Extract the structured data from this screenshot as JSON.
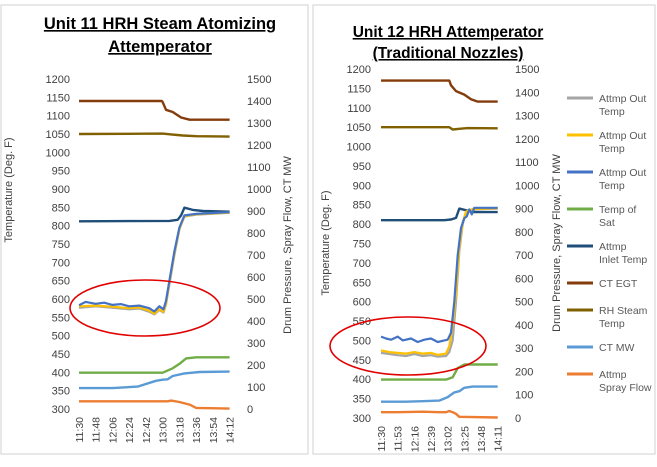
{
  "charts": [
    {
      "title_line1": "Unit 11 HRH Steam Atomizing",
      "title_line2": "Attemperator"
    },
    {
      "title_line1": "Unit 12 HRH Attemperator",
      "title_line2": "(Traditional Nozzles)"
    }
  ],
  "legend": [
    {
      "label_lines": [
        "Attmp Out",
        "Temp"
      ],
      "color": "#a5a5a5"
    },
    {
      "label_lines": [
        "Attmp Out",
        "Temp"
      ],
      "color": "#ffc000"
    },
    {
      "label_lines": [
        "Attmp Out",
        "Temp"
      ],
      "color": "#4472c4"
    },
    {
      "label_lines": [
        "Temp of",
        "Sat"
      ],
      "color": "#70ad47"
    },
    {
      "label_lines": [
        "Attmp",
        "Inlet Temp"
      ],
      "color": "#1f4e79"
    },
    {
      "label_lines": [
        "CT EGT"
      ],
      "color": "#843c0c"
    },
    {
      "label_lines": [
        "RH Steam",
        "Temp"
      ],
      "color": "#806000"
    },
    {
      "label_lines": [
        "CT MW"
      ],
      "color": "#5b9bd5"
    },
    {
      "label_lines": [
        "Attmp",
        "Spray Flow"
      ],
      "color": "#ed7d31"
    }
  ],
  "chart_data": [
    {
      "type": "line",
      "title": "Unit 11 HRH Steam Atomizing Attemperator",
      "ylabel": "Temperature (Deg. F)",
      "y2label": "Drum Pressure, Spray Flow, CT MW",
      "ylim": [
        300,
        1200
      ],
      "y2lim": [
        0,
        1500
      ],
      "yticks": [
        "300",
        "350",
        "400",
        "450",
        "500",
        "550",
        "600",
        "650",
        "700",
        "750",
        "800",
        "850",
        "900",
        "950",
        "1000",
        "1050",
        "1100",
        "1150",
        "1200"
      ],
      "y2ticks": [
        "0",
        "100",
        "200",
        "300",
        "400",
        "500",
        "600",
        "700",
        "800",
        "900",
        "1000",
        "1100",
        "1200",
        "1300",
        "1400",
        "1500"
      ],
      "categories": [
        "11:30",
        "11:48",
        "12:06",
        "12:24",
        "12:42",
        "13:00",
        "13:18",
        "13:36",
        "13:54",
        "14:12"
      ],
      "grid": false,
      "highlight": "red ellipse around Attmp Out Temp traces before 13:05",
      "series": [
        {
          "name": "CT EGT",
          "axis": "y2",
          "color": "#843c0c",
          "points": [
            [
              0,
              1400
            ],
            [
              4.95,
              1400
            ],
            [
              5.0,
              1395
            ],
            [
              5.2,
              1360
            ],
            [
              5.6,
              1350
            ],
            [
              6.1,
              1325
            ],
            [
              6.6,
              1315
            ],
            [
              9.0,
              1315
            ]
          ]
        },
        {
          "name": "RH Steam Temp",
          "axis": "y2",
          "color": "#806000",
          "points": [
            [
              0,
              1250
            ],
            [
              5.0,
              1252
            ],
            [
              5.5,
              1248
            ],
            [
              6.2,
              1243
            ],
            [
              7.0,
              1240
            ],
            [
              9.0,
              1238
            ]
          ]
        },
        {
          "name": "Attmp Inlet Temp",
          "axis": "y2",
          "color": "#1f4e79",
          "points": [
            [
              0,
              853
            ],
            [
              5.4,
              855
            ],
            [
              5.9,
              860
            ],
            [
              6.1,
              880
            ],
            [
              6.3,
              915
            ],
            [
              6.8,
              905
            ],
            [
              7.4,
              900
            ],
            [
              9.0,
              897
            ]
          ]
        },
        {
          "name": "CT MW",
          "axis": "y2",
          "color": "#5b9bd5",
          "points": [
            [
              0,
              95
            ],
            [
              2.0,
              95
            ],
            [
              3.5,
              102
            ],
            [
              4.6,
              128
            ],
            [
              5.0,
              133
            ],
            [
              5.3,
              135
            ],
            [
              5.6,
              150
            ],
            [
              6.3,
              162
            ],
            [
              7.2,
              168
            ],
            [
              9.0,
              170
            ]
          ]
        },
        {
          "name": "Temp of Sat",
          "axis": "y2",
          "color": "#70ad47",
          "points": [
            [
              0,
              165
            ],
            [
              5.0,
              165
            ],
            [
              5.6,
              185
            ],
            [
              6.0,
              205
            ],
            [
              6.4,
              230
            ],
            [
              7.0,
              235
            ],
            [
              9.0,
              235
            ]
          ]
        },
        {
          "name": "Attmp Spray Flow",
          "axis": "y2",
          "color": "#ed7d31",
          "points": [
            [
              0,
              35
            ],
            [
              5.3,
              35
            ],
            [
              5.5,
              38
            ],
            [
              6.0,
              32
            ],
            [
              6.6,
              20
            ],
            [
              7.0,
              5
            ],
            [
              9.0,
              2
            ]
          ]
        },
        {
          "name": "Attmp Out Temp",
          "axis": "y",
          "color": "#a5a5a5",
          "points": [
            [
              0,
              576
            ],
            [
              1.0,
              580
            ],
            [
              2.0,
              576
            ],
            [
              3.0,
              572
            ],
            [
              3.6,
              574
            ],
            [
              4.2,
              565
            ],
            [
              4.5,
              558
            ],
            [
              4.8,
              570
            ],
            [
              5.05,
              563
            ],
            [
              5.2,
              585
            ],
            [
              5.4,
              640
            ],
            [
              5.7,
              720
            ],
            [
              6.0,
              790
            ],
            [
              6.3,
              825
            ],
            [
              7.0,
              830
            ],
            [
              9.0,
              835
            ]
          ]
        },
        {
          "name": "Attmp Out Temp",
          "axis": "y",
          "color": "#ffc000",
          "points": [
            [
              0,
              580
            ],
            [
              1.0,
              582
            ],
            [
              2.0,
              579
            ],
            [
              3.0,
              575
            ],
            [
              3.6,
              577
            ],
            [
              4.2,
              568
            ],
            [
              4.5,
              560
            ],
            [
              4.8,
              572
            ],
            [
              5.05,
              565
            ],
            [
              5.2,
              588
            ],
            [
              5.4,
              645
            ],
            [
              5.7,
              725
            ],
            [
              6.0,
              792
            ],
            [
              6.3,
              826
            ],
            [
              7.0,
              831
            ],
            [
              9.0,
              836
            ]
          ]
        },
        {
          "name": "Attmp Out Temp",
          "axis": "y",
          "color": "#4472c4",
          "points": [
            [
              0,
              583
            ],
            [
              0.4,
              592
            ],
            [
              1.0,
              587
            ],
            [
              1.5,
              590
            ],
            [
              2.0,
              584
            ],
            [
              2.5,
              586
            ],
            [
              3.0,
              580
            ],
            [
              3.6,
              582
            ],
            [
              4.2,
              575
            ],
            [
              4.5,
              566
            ],
            [
              4.8,
              580
            ],
            [
              5.05,
              572
            ],
            [
              5.2,
              595
            ],
            [
              5.4,
              650
            ],
            [
              5.7,
              730
            ],
            [
              6.0,
              795
            ],
            [
              6.3,
              828
            ],
            [
              7.0,
              832
            ],
            [
              9.0,
              837
            ]
          ]
        }
      ]
    },
    {
      "type": "line",
      "title": "Unit 12 HRH Attemperator (Traditional Nozzles)",
      "ylabel": "Temperature (Deg. F)",
      "y2label": "Drum Pressure, Spray Flow, CT MW",
      "ylim": [
        300,
        1200
      ],
      "y2lim": [
        0,
        1500
      ],
      "yticks": [
        "300",
        "350",
        "400",
        "450",
        "500",
        "550",
        "600",
        "650",
        "700",
        "750",
        "800",
        "850",
        "900",
        "950",
        "1000",
        "1050",
        "1100",
        "1150",
        "1200"
      ],
      "y2ticks": [
        "0",
        "100",
        "200",
        "300",
        "400",
        "500",
        "600",
        "700",
        "800",
        "900",
        "1000",
        "1100",
        "1200",
        "1300",
        "1400",
        "1500"
      ],
      "categories": [
        "11:30",
        "11:53",
        "12:16",
        "12:39",
        "13:02",
        "13:25",
        "13:48",
        "14:11"
      ],
      "grid": false,
      "highlight": "red ellipse around Attmp Out Temp traces before 13:10",
      "series": [
        {
          "name": "CT EGT",
          "axis": "y2",
          "color": "#843c0c",
          "points": [
            [
              0,
              1450
            ],
            [
              4.1,
              1450
            ],
            [
              4.2,
              1430
            ],
            [
              4.5,
              1405
            ],
            [
              5.0,
              1390
            ],
            [
              5.4,
              1370
            ],
            [
              5.8,
              1360
            ],
            [
              7.0,
              1360
            ]
          ]
        },
        {
          "name": "RH Steam Temp",
          "axis": "y2",
          "color": "#806000",
          "points": [
            [
              0,
              1250
            ],
            [
              4.1,
              1250
            ],
            [
              4.3,
              1240
            ],
            [
              4.7,
              1243
            ],
            [
              5.2,
              1246
            ],
            [
              7.0,
              1245
            ]
          ]
        },
        {
          "name": "Attmp Inlet Temp",
          "axis": "y2",
          "color": "#1f4e79",
          "points": [
            [
              0,
              850
            ],
            [
              3.8,
              850
            ],
            [
              4.2,
              853
            ],
            [
              4.5,
              860
            ],
            [
              4.7,
              900
            ],
            [
              5.0,
              895
            ],
            [
              5.5,
              885
            ],
            [
              7.0,
              885
            ]
          ]
        },
        {
          "name": "CT MW",
          "axis": "y2",
          "color": "#5b9bd5",
          "points": [
            [
              0,
              70
            ],
            [
              1.5,
              70
            ],
            [
              2.5,
              72
            ],
            [
              3.5,
              75
            ],
            [
              4.0,
              90
            ],
            [
              4.4,
              110
            ],
            [
              4.7,
              115
            ],
            [
              5.0,
              130
            ],
            [
              5.5,
              135
            ],
            [
              7.0,
              135
            ]
          ]
        },
        {
          "name": "Temp of Sat",
          "axis": "y2",
          "color": "#70ad47",
          "points": [
            [
              0,
              165
            ],
            [
              3.9,
              165
            ],
            [
              4.3,
              175
            ],
            [
              4.6,
              215
            ],
            [
              5.0,
              230
            ],
            [
              7.0,
              230
            ]
          ]
        },
        {
          "name": "Attmp Spray Flow",
          "axis": "y2",
          "color": "#ed7d31",
          "points": [
            [
              0,
              25
            ],
            [
              1.0,
              25
            ],
            [
              2.5,
              27
            ],
            [
              3.5,
              25
            ],
            [
              3.9,
              25
            ],
            [
              4.1,
              30
            ],
            [
              4.3,
              25
            ],
            [
              4.5,
              18
            ],
            [
              4.7,
              5
            ],
            [
              7.0,
              2
            ]
          ]
        },
        {
          "name": "Attmp Out Temp",
          "axis": "y",
          "color": "#a5a5a5",
          "points": [
            [
              0,
              468
            ],
            [
              0.5,
              465
            ],
            [
              1.0,
              462
            ],
            [
              1.5,
              460
            ],
            [
              2.0,
              465
            ],
            [
              2.5,
              460
            ],
            [
              3.0,
              462
            ],
            [
              3.4,
              458
            ],
            [
              3.9,
              460
            ],
            [
              4.1,
              470
            ],
            [
              4.3,
              500
            ],
            [
              4.5,
              600
            ],
            [
              4.7,
              730
            ],
            [
              4.9,
              800
            ],
            [
              5.1,
              830
            ],
            [
              5.5,
              838
            ],
            [
              7.0,
              840
            ]
          ]
        },
        {
          "name": "Attmp Out Temp",
          "axis": "y",
          "color": "#ffc000",
          "points": [
            [
              0,
              474
            ],
            [
              0.5,
              470
            ],
            [
              1.0,
              468
            ],
            [
              1.5,
              466
            ],
            [
              2.0,
              470
            ],
            [
              2.5,
              466
            ],
            [
              3.0,
              468
            ],
            [
              3.4,
              463
            ],
            [
              3.9,
              466
            ],
            [
              4.1,
              485
            ],
            [
              4.3,
              540
            ],
            [
              4.5,
              620
            ],
            [
              4.7,
              740
            ],
            [
              4.9,
              805
            ],
            [
              5.1,
              832
            ],
            [
              5.5,
              839
            ],
            [
              7.0,
              841
            ]
          ]
        },
        {
          "name": "Attmp Out Temp",
          "axis": "y",
          "color": "#4472c4",
          "points": [
            [
              0,
              510
            ],
            [
              0.3,
              505
            ],
            [
              0.6,
              502
            ],
            [
              1.0,
              510
            ],
            [
              1.3,
              500
            ],
            [
              1.8,
              505
            ],
            [
              2.2,
              496
            ],
            [
              2.6,
              502
            ],
            [
              3.0,
              505
            ],
            [
              3.4,
              496
            ],
            [
              3.8,
              500
            ],
            [
              4.0,
              502
            ],
            [
              4.2,
              520
            ],
            [
              4.4,
              600
            ],
            [
              4.6,
              720
            ],
            [
              4.8,
              790
            ],
            [
              5.0,
              815
            ],
            [
              5.15,
              820
            ],
            [
              5.3,
              838
            ],
            [
              5.45,
              825
            ],
            [
              5.6,
              842
            ],
            [
              7.0,
              842
            ]
          ]
        }
      ]
    }
  ]
}
